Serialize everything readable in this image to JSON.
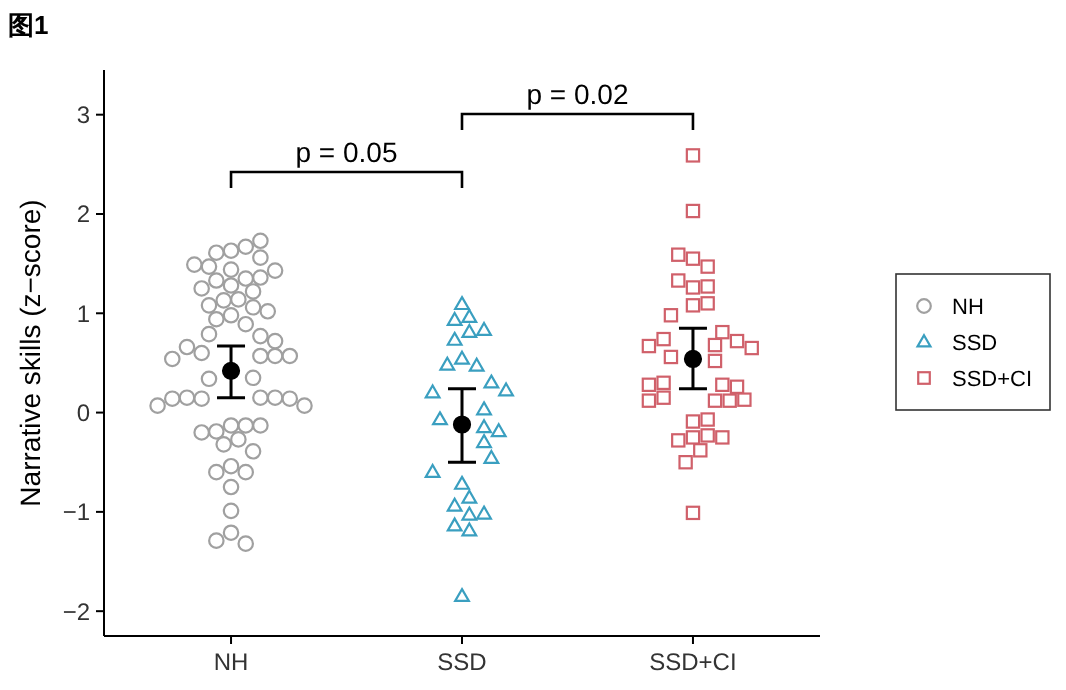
{
  "chart_data": {
    "type": "scatter",
    "title": "图1",
    "ylabel": "Narrative skills (z−score)",
    "categories": [
      "NH",
      "SSD",
      "SSD+CI"
    ],
    "ylim": [
      -2.25,
      3.45
    ],
    "yticks": [
      -2,
      -1,
      0,
      1,
      2,
      3
    ],
    "grid": false,
    "legend": "right",
    "annotations": [
      "p = 0.05",
      "p = 0.02"
    ],
    "series": [
      {
        "name": "NH",
        "color": "#a0a0a0",
        "marker": "circle",
        "x": [
          "NH",
          "NH",
          "NH",
          "NH",
          "NH",
          "NH",
          "NH",
          "NH",
          "NH",
          "NH",
          "NH",
          "NH",
          "NH",
          "NH",
          "NH",
          "NH",
          "NH",
          "NH",
          "NH",
          "NH",
          "NH",
          "NH",
          "NH",
          "NH",
          "NH",
          "NH",
          "NH",
          "NH",
          "NH",
          "NH",
          "NH",
          "NH",
          "NH",
          "NH",
          "NH",
          "NH",
          "NH",
          "NH",
          "NH",
          "NH",
          "NH",
          "NH",
          "NH",
          "NH",
          "NH",
          "NH",
          "NH",
          "NH",
          "NH",
          "NH",
          "NH",
          "NH",
          "NH",
          "NH",
          "NH",
          "NH",
          "NH",
          "NH"
        ],
        "values": [
          1.63,
          1.67,
          1.61,
          1.73,
          1.56,
          1.44,
          1.35,
          1.28,
          1.47,
          1.36,
          1.49,
          1.43,
          1.33,
          1.14,
          1.25,
          1.13,
          1.22,
          1.08,
          1.06,
          1.02,
          0.98,
          0.94,
          0.89,
          0.79,
          0.57,
          0.6,
          0.77,
          0.72,
          0.66,
          0.57,
          0.57,
          0.54,
          0.35,
          0.34,
          0.15,
          0.14,
          0.15,
          0.15,
          0.14,
          0.14,
          0.07,
          0.07,
          -0.13,
          -0.13,
          -0.19,
          -0.13,
          -0.2,
          -0.27,
          -0.32,
          -0.39,
          -0.54,
          -0.6,
          -0.6,
          -0.75,
          -0.99,
          -1.21,
          -1.32,
          -1.29
        ]
      },
      {
        "name": "SSD",
        "color": "#3a9fc0",
        "marker": "triangle",
        "x": [
          "SSD",
          "SSD",
          "SSD",
          "SSD",
          "SSD",
          "SSD",
          "SSD",
          "SSD",
          "SSD",
          "SSD",
          "SSD",
          "SSD",
          "SSD",
          "SSD",
          "SSD",
          "SSD",
          "SSD",
          "SSD",
          "SSD",
          "SSD",
          "SSD",
          "SSD",
          "SSD",
          "SSD",
          "SSD",
          "SSD",
          "SSD"
        ],
        "values": [
          1.09,
          0.96,
          0.93,
          0.81,
          0.73,
          0.83,
          0.54,
          0.47,
          0.48,
          0.3,
          0.2,
          0.22,
          0.03,
          -0.07,
          -0.15,
          -0.3,
          -0.19,
          -0.46,
          -0.6,
          -0.72,
          -0.86,
          -0.94,
          -1.03,
          -1.02,
          -1.14,
          -1.19,
          -1.85
        ]
      },
      {
        "name": "SSD+CI",
        "color": "#d0606a",
        "marker": "square",
        "x": [
          "SSD+CI",
          "SSD+CI",
          "SSD+CI",
          "SSD+CI",
          "SSD+CI",
          "SSD+CI",
          "SSD+CI",
          "SSD+CI",
          "SSD+CI",
          "SSD+CI",
          "SSD+CI",
          "SSD+CI",
          "SSD+CI",
          "SSD+CI",
          "SSD+CI",
          "SSD+CI",
          "SSD+CI",
          "SSD+CI",
          "SSD+CI",
          "SSD+CI",
          "SSD+CI",
          "SSD+CI",
          "SSD+CI",
          "SSD+CI",
          "SSD+CI",
          "SSD+CI",
          "SSD+CI",
          "SSD+CI",
          "SSD+CI",
          "SSD+CI",
          "SSD+CI",
          "SSD+CI",
          "SSD+CI",
          "SSD+CI",
          "SSD+CI",
          "SSD+CI",
          "SSD+CI"
        ],
        "values": [
          2.59,
          2.03,
          1.55,
          1.47,
          1.59,
          1.26,
          1.33,
          1.27,
          1.08,
          1.1,
          0.98,
          0.81,
          0.74,
          0.68,
          0.72,
          0.67,
          0.65,
          0.56,
          0.52,
          0.28,
          0.3,
          0.26,
          0.28,
          0.12,
          0.15,
          0.12,
          0.12,
          0.13,
          -0.09,
          -0.07,
          -0.25,
          -0.23,
          -0.28,
          -0.25,
          -0.38,
          -0.5,
          -1.01
        ]
      },
      {
        "color": "#000000",
        "marker": "circle",
        "x": [
          "NH",
          "SSD",
          "SSD+CI"
        ],
        "values": [
          0.42,
          -0.12,
          0.54
        ],
        "errors": [
          [
            0.15,
            0.67
          ],
          [
            -0.5,
            0.24
          ],
          [
            0.24,
            0.85
          ]
        ]
      }
    ]
  }
}
